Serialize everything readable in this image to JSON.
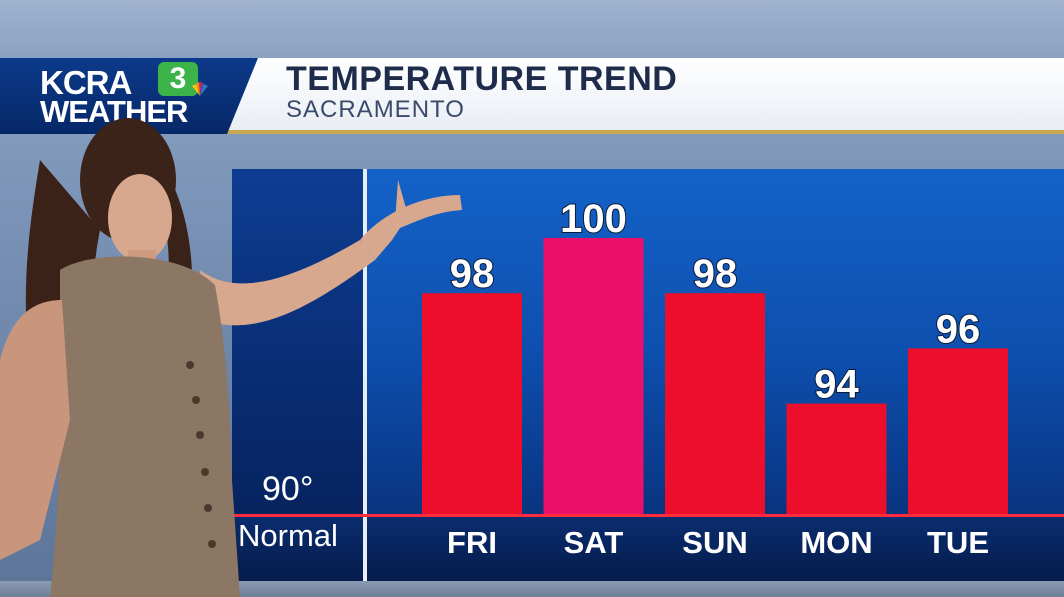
{
  "brand": {
    "station": "KCRA",
    "channel": "3",
    "segment": "WEATHER"
  },
  "header": {
    "title": "TEMPERATURE TREND",
    "subtitle": "SACRAMENTO"
  },
  "colors": {
    "bar": "#ec0e2a",
    "bar_highlight": "#ee0f6a",
    "normal_line": "#ff2a3c",
    "background": "#0d4fae"
  },
  "chart_data": {
    "type": "bar",
    "categories": [
      "FRI",
      "SAT",
      "SUN",
      "MON",
      "TUE"
    ],
    "values": [
      98,
      100,
      98,
      94,
      96
    ],
    "value_labels": [
      "98",
      "100",
      "98",
      "94",
      "96"
    ],
    "highlight_index": 1,
    "baseline": 90,
    "baseline_value_label": "90°",
    "baseline_label": "Normal",
    "title": "TEMPERATURE TREND",
    "ylim": [
      90,
      100
    ]
  }
}
